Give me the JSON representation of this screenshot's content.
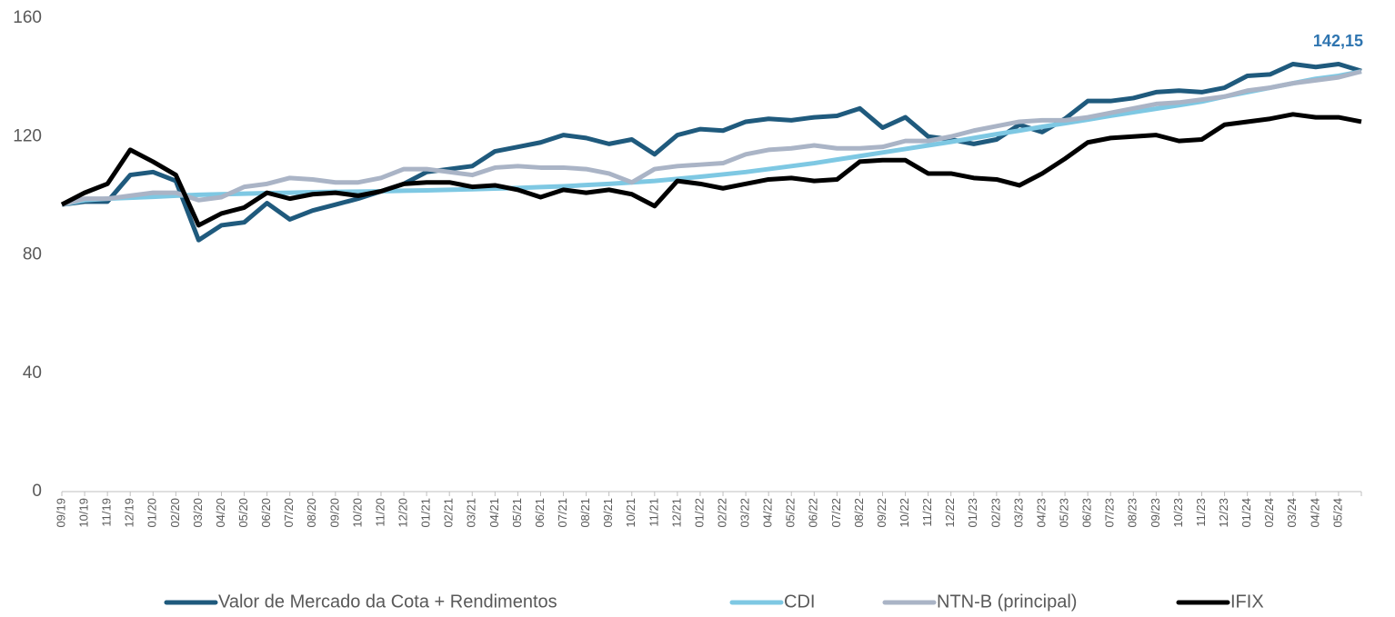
{
  "chart_data": {
    "type": "line",
    "categories": [
      "09/19",
      "10/19",
      "11/19",
      "12/19",
      "01/20",
      "02/20",
      "03/20",
      "04/20",
      "05/20",
      "06/20",
      "07/20",
      "08/20",
      "09/20",
      "10/20",
      "11/20",
      "12/20",
      "01/21",
      "02/21",
      "03/21",
      "04/21",
      "05/21",
      "06/21",
      "07/21",
      "08/21",
      "09/21",
      "10/21",
      "11/21",
      "12/21",
      "01/22",
      "02/22",
      "03/22",
      "04/22",
      "05/22",
      "06/22",
      "07/22",
      "08/22",
      "09/22",
      "10/22",
      "11/22",
      "12/22",
      "01/23",
      "02/23",
      "03/23",
      "04/23",
      "05/23",
      "06/23",
      "07/23",
      "08/23",
      "09/23",
      "10/23",
      "11/23",
      "12/23",
      "01/24",
      "02/24",
      "03/24",
      "04/24",
      "05/24",
      null
    ],
    "series": [
      {
        "name": "Valor de Mercado da Cota + Rendimentos",
        "color": "#1f5a7d",
        "values": [
          97,
          98,
          98,
          107,
          108,
          105,
          85,
          90,
          91,
          97.5,
          92,
          95,
          97,
          99,
          101.5,
          104,
          108,
          109,
          110,
          115,
          116.5,
          118,
          120.5,
          119.5,
          117.5,
          119,
          114,
          120.5,
          122.5,
          122,
          125,
          126,
          125.5,
          126.5,
          127,
          129.5,
          123,
          126.5,
          120,
          119,
          117.5,
          119,
          124,
          121.5,
          126,
          132,
          132,
          133,
          135,
          135.5,
          135,
          136.5,
          140.5,
          141,
          144.5,
          143.5,
          144.5,
          142.15
        ]
      },
      {
        "name": "CDI",
        "color": "#7ec8e3",
        "values": [
          97,
          98.5,
          99,
          99.3,
          99.6,
          100,
          100.3,
          100.5,
          100.7,
          100.9,
          101,
          101.2,
          101.3,
          101.4,
          101.5,
          101.7,
          101.8,
          102,
          102.2,
          102.4,
          102.6,
          102.9,
          103.2,
          103.6,
          104,
          104.5,
          105,
          105.7,
          106.4,
          107.2,
          108,
          109,
          110,
          111,
          112.2,
          113.4,
          114.6,
          115.8,
          117,
          118.2,
          119.5,
          120.8,
          122,
          123.3,
          124.5,
          125.7,
          127,
          128.2,
          129.4,
          130.6,
          131.8,
          133.5,
          135,
          136.5,
          138,
          139.5,
          140.5,
          142
        ]
      },
      {
        "name": "NTN-B (principal)",
        "color": "#aab4c6",
        "values": [
          97,
          99,
          99,
          100,
          101,
          101,
          98.5,
          99.5,
          103,
          104,
          106,
          105.5,
          104.5,
          104.5,
          106,
          109,
          109,
          108,
          107,
          109.5,
          110,
          109.5,
          109.5,
          109,
          107.5,
          104.5,
          109,
          110,
          110.5,
          111,
          114,
          115.5,
          116,
          117,
          116,
          116,
          116.5,
          118.5,
          118.5,
          120,
          122,
          123.5,
          125,
          125.5,
          125.5,
          126.5,
          128,
          129.5,
          131,
          131.5,
          132.5,
          133.5,
          135.5,
          136.5,
          138,
          139,
          140,
          142
        ]
      },
      {
        "name": "IFIX",
        "color": "#000000",
        "values": [
          97,
          101,
          104,
          115.5,
          111.5,
          107,
          90,
          94,
          96,
          101,
          99,
          100.5,
          101,
          100,
          101.5,
          104,
          104.5,
          104.5,
          103,
          103.5,
          102,
          99.5,
          102,
          101,
          102,
          100.5,
          96.5,
          105,
          104,
          102.5,
          104,
          105.5,
          106,
          105,
          105.5,
          111.5,
          112,
          112,
          107.5,
          107.5,
          106,
          105.5,
          103.5,
          107.5,
          112.5,
          118,
          119.5,
          120,
          120.5,
          118.5,
          119,
          124,
          125,
          126,
          127.5,
          126.5,
          126.5,
          125
        ]
      }
    ],
    "ylim": [
      0,
      160
    ],
    "yticks": [
      0,
      40,
      80,
      120,
      160
    ],
    "grid": false,
    "legend": "bottom",
    "annotation": "142,15",
    "annotation_color": "#2f75b0"
  }
}
